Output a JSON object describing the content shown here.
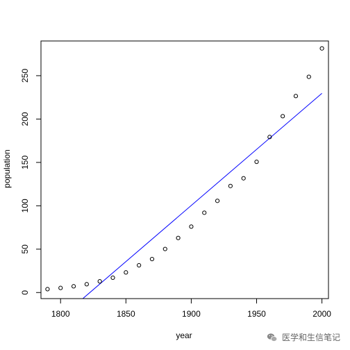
{
  "chart_data": {
    "type": "scatter",
    "title": "",
    "xlabel": "year",
    "ylabel": "population",
    "xlim": [
      1785,
      2005
    ],
    "ylim": [
      -7,
      290
    ],
    "x_ticks": [
      1800,
      1850,
      1900,
      1950,
      2000
    ],
    "y_ticks": [
      0,
      50,
      100,
      150,
      200,
      250
    ],
    "grid": false,
    "points": {
      "x": [
        1790,
        1800,
        1810,
        1820,
        1830,
        1840,
        1850,
        1860,
        1870,
        1880,
        1890,
        1900,
        1910,
        1920,
        1930,
        1940,
        1950,
        1960,
        1970,
        1980,
        1990,
        2000
      ],
      "y": [
        3.9,
        5.3,
        7.2,
        9.6,
        12.9,
        17.1,
        23.2,
        31.4,
        38.6,
        50.2,
        62.9,
        76.0,
        92.0,
        105.7,
        122.8,
        131.7,
        150.7,
        179.3,
        203.3,
        226.5,
        248.7,
        281.4
      ]
    },
    "fit_line": {
      "color": "#0000ff",
      "x": [
        1817,
        2000
      ],
      "y": [
        -7,
        229.7
      ]
    },
    "point_color": "#000000"
  },
  "watermark": {
    "text": "医学和生信笔记",
    "icon": "wechat-icon"
  }
}
